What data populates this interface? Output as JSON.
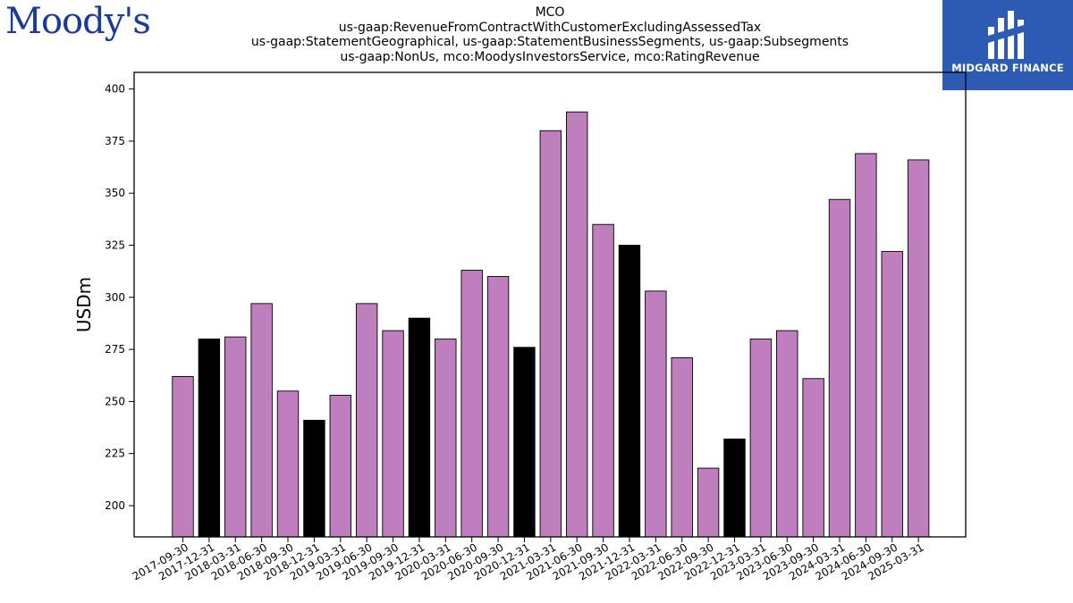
{
  "branding": {
    "left_logo": "Moody's",
    "right_logo": "MIDGARD FINANCE"
  },
  "title_lines": [
    "MCO",
    "us-gaap:RevenueFromContractWithCustomerExcludingAssessedTax",
    "us-gaap:StatementGeographical, us-gaap:StatementBusinessSegments, us-gaap:Subsegments",
    "us-gaap:NonUs, mco:MoodysInvestorsService, mco:RatingRevenue"
  ],
  "colors": {
    "bar": "#bf7fbf",
    "bar_highlight": "#000000",
    "logo_blue": "#1a3a9c",
    "badge_blue": "#2d5bb3"
  },
  "chart_data": {
    "type": "bar",
    "ylabel": "USDm",
    "xlabel": "",
    "ylim": [
      185,
      408
    ],
    "yticks": [
      200,
      225,
      250,
      275,
      300,
      325,
      350,
      375,
      400
    ],
    "grid": false,
    "categories": [
      "2017-09-30",
      "2017-12-31",
      "2018-03-31",
      "2018-06-30",
      "2018-09-30",
      "2018-12-31",
      "2019-03-31",
      "2019-06-30",
      "2019-09-30",
      "2019-12-31",
      "2020-03-31",
      "2020-06-30",
      "2020-09-30",
      "2020-12-31",
      "2021-03-31",
      "2021-06-30",
      "2021-09-30",
      "2021-12-31",
      "2022-03-31",
      "2022-06-30",
      "2022-09-30",
      "2022-12-31",
      "2023-03-31",
      "2023-06-30",
      "2023-09-30",
      "2024-03-31",
      "2024-06-30",
      "2024-09-30",
      "2025-03-31"
    ],
    "values": [
      262,
      280,
      281,
      297,
      255,
      241,
      253,
      297,
      284,
      290,
      280,
      313,
      310,
      276,
      380,
      389,
      335,
      325,
      303,
      271,
      218,
      232,
      280,
      284,
      261,
      347,
      369,
      322,
      366
    ],
    "highlight": [
      false,
      true,
      false,
      false,
      false,
      true,
      false,
      false,
      false,
      true,
      false,
      false,
      false,
      true,
      false,
      false,
      false,
      true,
      false,
      false,
      false,
      true,
      false,
      false,
      false,
      false,
      false,
      false,
      false
    ]
  }
}
